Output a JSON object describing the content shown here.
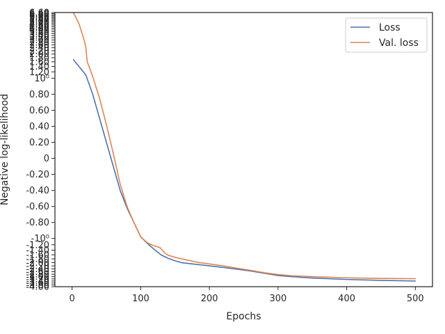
{
  "chart_data": {
    "type": "line",
    "xlabel": "Epochs",
    "ylabel": "Negative log-likelihood",
    "xlim": [
      -25,
      525
    ],
    "x_ticks": [
      0,
      100,
      200,
      300,
      400,
      500
    ],
    "x_tick_labels": [
      "0",
      "100",
      "200",
      "300",
      "400",
      "500"
    ],
    "y_scale": "symlog",
    "ylim": [
      -4.0,
      6.6
    ],
    "y_tick_labels": [
      "6.60",
      "6.40",
      "6.20",
      "6.00",
      "5.80",
      "5.60",
      "5.40",
      "5.20",
      "5.00",
      "4.80",
      "4.60",
      "4.40",
      "4.20",
      "4.00",
      "3.80",
      "3.60",
      "3.40",
      "3.20",
      "3.00",
      "2.80",
      "2.60",
      "2.40",
      "2.20",
      "2.00",
      "1.80",
      "1.60",
      "1.40",
      "1.20",
      "10⁰",
      "0.80",
      "0.60",
      "0.40",
      "0.20",
      "0",
      "-0.20",
      "-0.40",
      "-0.60",
      "-0.80",
      "-10⁰",
      "-1.20",
      "-1.40",
      "-1.60",
      "-1.80",
      "-2.00",
      "-2.20",
      "-2.40",
      "-2.60",
      "-2.80",
      "-3.00",
      "-3.20",
      "-3.40",
      "-3.60",
      "-3.80",
      "-4.00"
    ],
    "legend_position": "top-right",
    "grid": false,
    "series": [
      {
        "name": "Loss",
        "color": "#4c72b0",
        "points": [
          [
            2,
            1.7
          ],
          [
            10,
            1.4
          ],
          [
            20,
            1.1
          ],
          [
            30,
            0.8
          ],
          [
            40,
            0.5
          ],
          [
            50,
            0.2
          ],
          [
            60,
            -0.1
          ],
          [
            70,
            -0.4
          ],
          [
            80,
            -0.62
          ],
          [
            90,
            -0.8
          ],
          [
            100,
            -0.98
          ],
          [
            110,
            -1.16
          ],
          [
            120,
            -1.38
          ],
          [
            130,
            -1.61
          ],
          [
            140,
            -1.77
          ],
          [
            150,
            -1.9
          ],
          [
            160,
            -2.01
          ],
          [
            180,
            -2.1
          ],
          [
            200,
            -2.2
          ],
          [
            220,
            -2.3
          ],
          [
            240,
            -2.42
          ],
          [
            260,
            -2.55
          ],
          [
            280,
            -2.72
          ],
          [
            300,
            -2.9
          ],
          [
            320,
            -3.0
          ],
          [
            350,
            -3.12
          ],
          [
            400,
            -3.25
          ],
          [
            450,
            -3.34
          ],
          [
            500,
            -3.4
          ]
        ]
      },
      {
        "name": "Val. loss",
        "color": "#dd8452",
        "points": [
          [
            2,
            6.55
          ],
          [
            10,
            4.8
          ],
          [
            18,
            2.9
          ],
          [
            20,
            2.4
          ],
          [
            22,
            1.6
          ],
          [
            25,
            1.38
          ],
          [
            30,
            1.05
          ],
          [
            40,
            0.75
          ],
          [
            50,
            0.42
          ],
          [
            60,
            0.06
          ],
          [
            70,
            -0.32
          ],
          [
            80,
            -0.6
          ],
          [
            90,
            -0.8
          ],
          [
            100,
            -0.98
          ],
          [
            110,
            -1.14
          ],
          [
            120,
            -1.24
          ],
          [
            128,
            -1.3
          ],
          [
            135,
            -1.52
          ],
          [
            140,
            -1.62
          ],
          [
            150,
            -1.72
          ],
          [
            160,
            -1.8
          ],
          [
            170,
            -1.88
          ],
          [
            185,
            -2.0
          ],
          [
            200,
            -2.08
          ],
          [
            220,
            -2.2
          ],
          [
            240,
            -2.35
          ],
          [
            260,
            -2.5
          ],
          [
            280,
            -2.68
          ],
          [
            300,
            -2.82
          ],
          [
            320,
            -2.92
          ],
          [
            350,
            -3.0
          ],
          [
            400,
            -3.1
          ],
          [
            450,
            -3.15
          ],
          [
            500,
            -3.18
          ]
        ]
      }
    ]
  }
}
